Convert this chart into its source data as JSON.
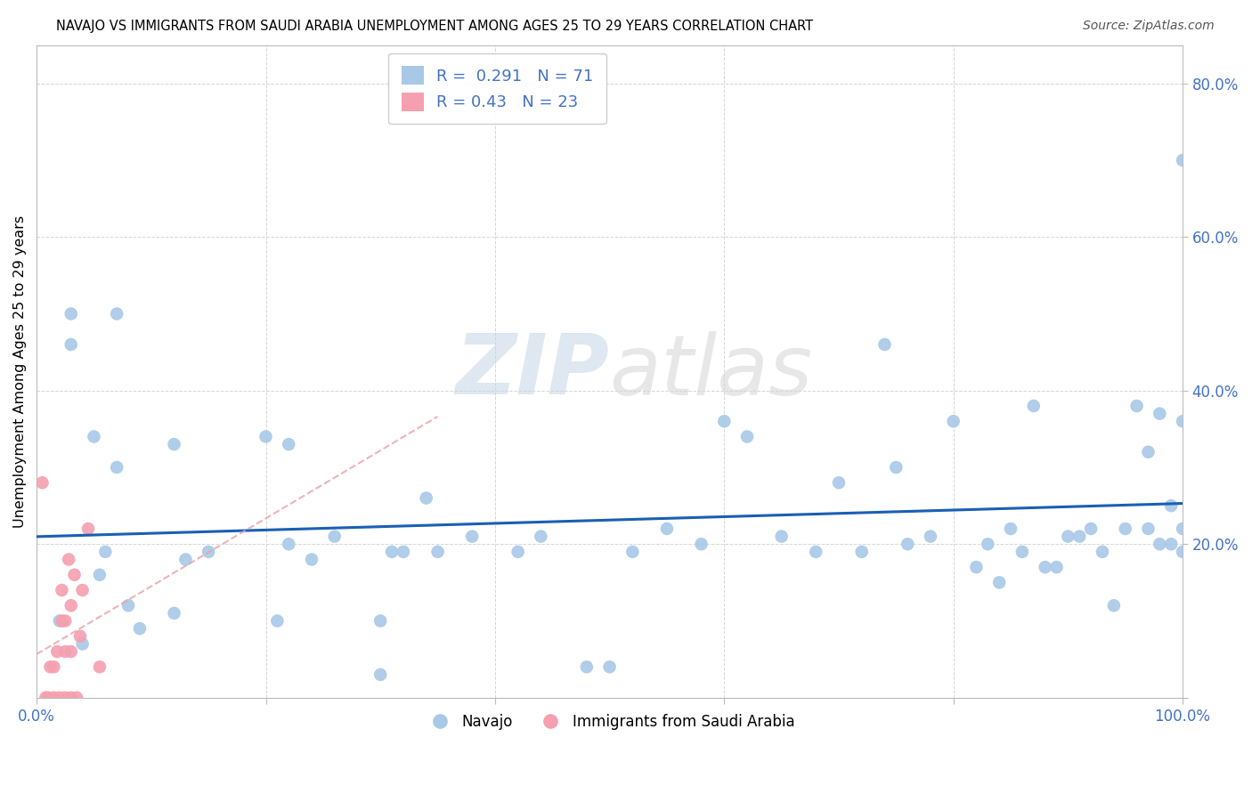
{
  "title": "NAVAJO VS IMMIGRANTS FROM SAUDI ARABIA UNEMPLOYMENT AMONG AGES 25 TO 29 YEARS CORRELATION CHART",
  "source": "Source: ZipAtlas.com",
  "ylabel": "Unemployment Among Ages 25 to 29 years",
  "xlim": [
    0.0,
    1.0
  ],
  "ylim": [
    0.0,
    0.85
  ],
  "xticks": [
    0.0,
    0.2,
    0.4,
    0.6,
    0.8,
    1.0
  ],
  "xticklabels": [
    "0.0%",
    "",
    "",
    "",
    "",
    "100.0%"
  ],
  "ytick_positions": [
    0.0,
    0.2,
    0.4,
    0.6,
    0.8
  ],
  "yticklabels": [
    "",
    "20.0%",
    "40.0%",
    "60.0%",
    "80.0%"
  ],
  "navajo_R": 0.291,
  "navajo_N": 71,
  "saudi_R": 0.43,
  "saudi_N": 23,
  "navajo_color": "#a8c8e8",
  "saudi_color": "#f4a0b0",
  "navajo_trend_color": "#1a5fb4",
  "saudi_trend_color": "#e8a0a8",
  "watermark_zip": "ZIP",
  "watermark_atlas": "atlas",
  "navajo_x": [
    0.02,
    0.03,
    0.03,
    0.04,
    0.05,
    0.055,
    0.06,
    0.07,
    0.07,
    0.08,
    0.09,
    0.12,
    0.12,
    0.13,
    0.15,
    0.2,
    0.21,
    0.22,
    0.22,
    0.24,
    0.26,
    0.3,
    0.3,
    0.31,
    0.32,
    0.34,
    0.35,
    0.38,
    0.42,
    0.44,
    0.48,
    0.5,
    0.52,
    0.55,
    0.58,
    0.6,
    0.62,
    0.65,
    0.68,
    0.7,
    0.72,
    0.74,
    0.75,
    0.76,
    0.78,
    0.8,
    0.82,
    0.83,
    0.84,
    0.85,
    0.86,
    0.87,
    0.88,
    0.89,
    0.9,
    0.91,
    0.92,
    0.93,
    0.94,
    0.95,
    0.96,
    0.97,
    0.97,
    0.98,
    0.98,
    0.99,
    0.99,
    1.0,
    1.0,
    1.0,
    1.0
  ],
  "navajo_y": [
    0.1,
    0.46,
    0.5,
    0.07,
    0.34,
    0.16,
    0.19,
    0.3,
    0.5,
    0.12,
    0.09,
    0.11,
    0.33,
    0.18,
    0.19,
    0.34,
    0.1,
    0.2,
    0.33,
    0.18,
    0.21,
    0.03,
    0.1,
    0.19,
    0.19,
    0.26,
    0.19,
    0.21,
    0.19,
    0.21,
    0.04,
    0.04,
    0.19,
    0.22,
    0.2,
    0.36,
    0.34,
    0.21,
    0.19,
    0.28,
    0.19,
    0.46,
    0.3,
    0.2,
    0.21,
    0.36,
    0.17,
    0.2,
    0.15,
    0.22,
    0.19,
    0.38,
    0.17,
    0.17,
    0.21,
    0.21,
    0.22,
    0.19,
    0.12,
    0.22,
    0.38,
    0.22,
    0.32,
    0.2,
    0.37,
    0.25,
    0.2,
    0.7,
    0.22,
    0.19,
    0.36
  ],
  "saudi_x": [
    0.005,
    0.008,
    0.01,
    0.012,
    0.015,
    0.015,
    0.018,
    0.02,
    0.022,
    0.022,
    0.025,
    0.025,
    0.025,
    0.028,
    0.03,
    0.03,
    0.03,
    0.033,
    0.035,
    0.038,
    0.04,
    0.045,
    0.055
  ],
  "saudi_y": [
    0.28,
    0.0,
    0.0,
    0.04,
    0.0,
    0.04,
    0.06,
    0.0,
    0.1,
    0.14,
    0.0,
    0.06,
    0.1,
    0.18,
    0.0,
    0.06,
    0.12,
    0.16,
    0.0,
    0.08,
    0.14,
    0.22,
    0.04
  ]
}
